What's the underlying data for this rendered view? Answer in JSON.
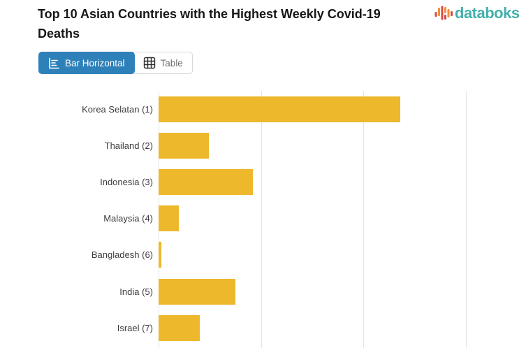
{
  "header": {
    "title": "Top 10 Asian Countries with the Highest Weekly Covid-19 Deaths",
    "logo_text": "databoks"
  },
  "toolbar": {
    "bar_horizontal_label": "Bar Horizontal",
    "table_label": "Table",
    "active_view": "Bar Horizontal"
  },
  "chart_data": {
    "type": "bar",
    "orientation": "horizontal",
    "title": "Top 10 Asian Countries with the Highest Weekly Covid-19 Deaths",
    "categories": [
      "Korea Selatan (1)",
      "Thailand (2)",
      "Indonesia (3)",
      "Malaysia (4)",
      "Bangladesh (6)",
      "India (5)",
      "Israel (7)"
    ],
    "values": [
      236,
      49,
      92,
      20,
      3,
      75,
      40
    ],
    "value_note": "x-axis tick labels not visible in screenshot; values estimated in gridline units (one gridline interval = 100)",
    "xlim": [
      0,
      360
    ],
    "grid": true,
    "legend": false,
    "bar_color": "#EDB82C",
    "rows_visible": 7,
    "chart_cut_off_at_bottom": true
  },
  "colors": {
    "bar": "#EDB82C",
    "active_button": "#2E80B9",
    "logo_teal": "#44B0AB",
    "logo_red": "#D9493F",
    "logo_orange": "#F28F3D",
    "gridline": "#E4E4E4"
  },
  "icons": {
    "bar_horizontal_icon": "horizontal bar chart with axis",
    "table_icon": "3x3 grid",
    "logo_icon": "waveform bars"
  }
}
